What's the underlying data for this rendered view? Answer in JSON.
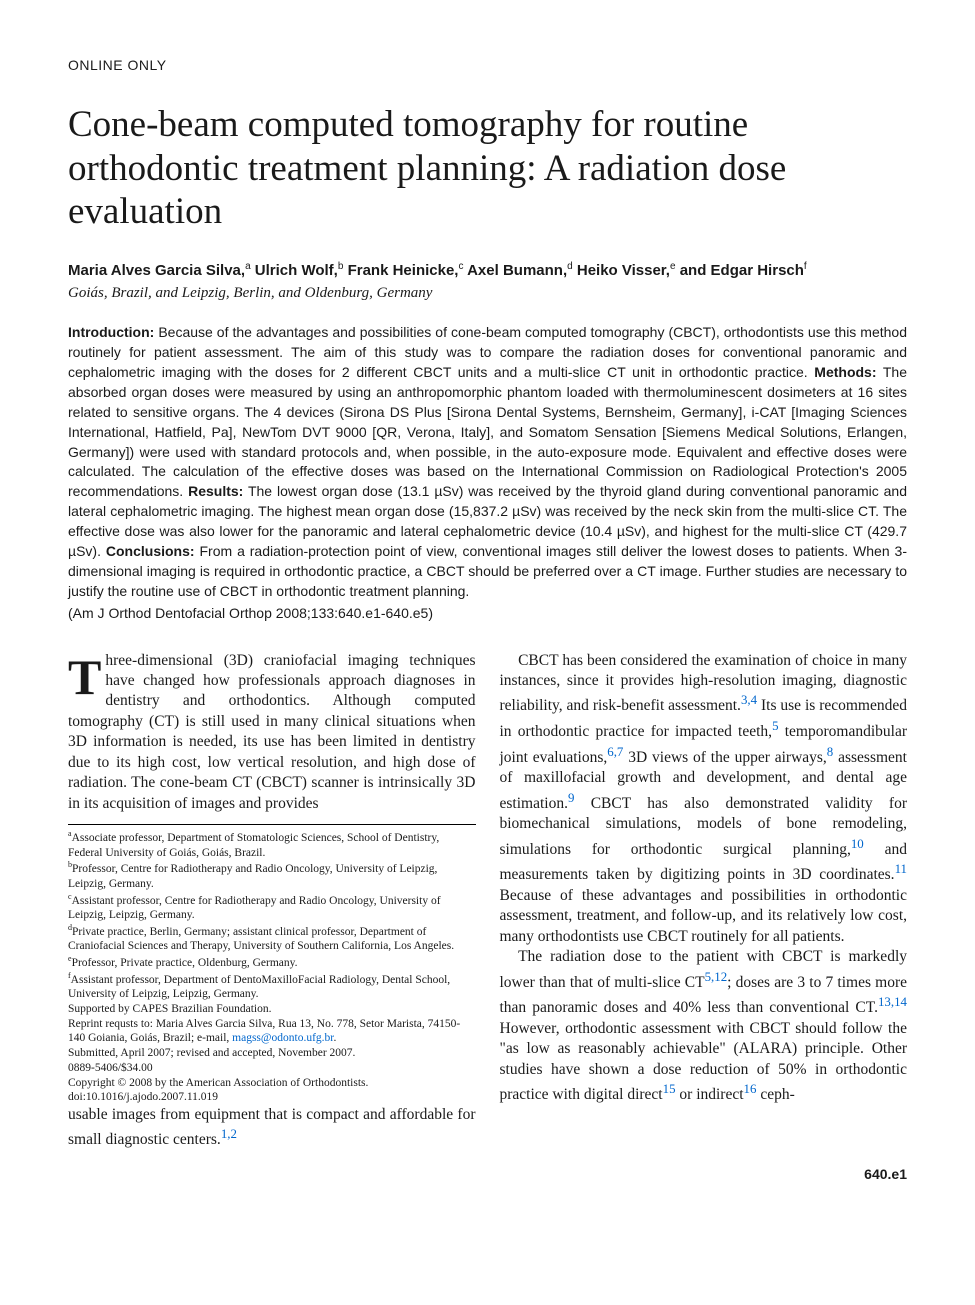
{
  "header": {
    "section_label": "ONLINE ONLY",
    "title": "Cone-beam computed tomography for routine orthodontic treatment planning: A radiation dose evaluation",
    "authors_html": "Maria Alves Garcia Silva,<sup>a</sup> Ulrich Wolf,<sup>b</sup> Frank Heinicke,<sup>c</sup> Axel Bumann,<sup>d</sup> Heiko Visser,<sup>e</sup> and Edgar Hirsch<sup>f</sup>",
    "affiliations": "Goiás, Brazil, and Leipzig, Berlin, and Oldenburg, Germany"
  },
  "abstract": {
    "intro_label": "Introduction:",
    "intro": " Because of the advantages and possibilities of cone-beam computed tomography (CBCT), orthodontists use this method routinely for patient assessment. The aim of this study was to compare the radiation doses for conventional panoramic and cephalometric imaging with the doses for 2 different CBCT units and a multi-slice CT unit in orthodontic practice. ",
    "methods_label": "Methods:",
    "methods": " The absorbed organ doses were measured by using an anthropomorphic phantom loaded with thermoluminescent dosimeters at 16 sites related to sensitive organs. The 4 devices (Sirona DS Plus [Sirona Dental Systems, Bernsheim, Germany], i-CAT [Imaging Sciences International, Hatfield, Pa], NewTom DVT 9000 [QR, Verona, Italy], and Somatom Sensation [Siemens Medical Solutions, Erlangen, Germany]) were used with standard protocols and, when possible, in the auto-exposure mode. Equivalent and effective doses were calculated. The calculation of the effective doses was based on the International Commission on Radiological Protection's 2005 recommendations. ",
    "results_label": "Results:",
    "results": " The lowest organ dose (13.1 µSv) was received by the thyroid gland during conventional panoramic and lateral cephalometric imaging. The highest mean organ dose (15,837.2 µSv) was received by the neck skin from the multi-slice CT. The effective dose was also lower for the panoramic and lateral cephalometric device (10.4 µSv), and highest for the multi-slice CT (429.7 µSv). ",
    "conclusions_label": "Conclusions:",
    "conclusions": " From a radiation-protection point of view, conventional images still deliver the lowest doses to patients. When 3-dimensional imaging is required in orthodontic practice, a CBCT should be preferred over a CT image. Further studies are necessary to justify the routine use of CBCT in orthodontic treatment planning. ",
    "citation": "(Am J Orthod Dentofacial Orthop 2008;133:640.e1-640.e5)"
  },
  "body": {
    "p1": "Three-dimensional (3D) craniofacial imaging techniques have changed how professionals approach diagnoses in dentistry and orthodontics. Although computed tomography (CT) is still used in many clinical situations when 3D information is needed, its use has been limited in dentistry due to its high cost, low vertical resolution, and high dose of radiation. The cone-beam CT (CBCT) scanner is intrinsically 3D in its acquisition of images and provides",
    "p2a": "usable images from equipment that is compact and affordable for small diagnostic centers.",
    "p2_refs": "1,2",
    "p3a": "CBCT has been considered the examination of choice in many instances, since it provides high-resolution imaging, diagnostic reliability, and risk-benefit assessment.",
    "p3_ref1": "3,4",
    "p3b": " Its use is recommended in orthodontic practice for impacted teeth,",
    "p3_ref2": "5",
    "p3c": " temporomandibular joint evaluations,",
    "p3_ref3": "6,7",
    "p3d": " 3D views of the upper airways,",
    "p3_ref4": "8",
    "p3e": " assessment of maxillofacial growth and development, and dental age estimation.",
    "p3_ref5": "9",
    "p3f": " CBCT has also demonstrated validity for biomechanical simulations, models of bone remodeling, simulations for orthodontic surgical planning,",
    "p3_ref6": "10",
    "p3g": " and measurements taken by digitizing points in 3D coordinates.",
    "p3_ref7": "11",
    "p3h": " Because of these advantages and possibilities in orthodontic assessment, treatment, and follow-up, and its relatively low cost, many orthodontists use CBCT routinely for all patients.",
    "p4a": "The radiation dose to the patient with CBCT is markedly lower than that of multi-slice CT",
    "p4_ref1": "5,12",
    "p4b": "; doses are 3 to 7 times more than panoramic doses and 40% less than conventional CT.",
    "p4_ref2": "13,14",
    "p4c": " However, orthodontic assessment with CBCT should follow the \"as low as reasonably achievable\" (ALARA) principle. Other studies have shown a dose reduction of 50% in orthodontic practice with digital direct",
    "p4_ref3": "15",
    "p4d": " or indirect",
    "p4_ref4": "16",
    "p4e": " ceph-"
  },
  "footnotes": {
    "a": "Associate professor, Department of Stomatologic Sciences, School of Dentistry, Federal University of Goiás, Goiás, Brazil.",
    "b": "Professor, Centre for Radiotherapy and Radio Oncology, University of Leipzig, Leipzig, Germany.",
    "c": "Assistant professor, Centre for Radiotherapy and Radio Oncology, University of Leipzig, Leipzig, Germany.",
    "d": "Private practice, Berlin, Germany; assistant clinical professor, Department of Craniofacial Sciences and Therapy, University of Southern California, Los Angeles.",
    "e": "Professor, Private practice, Oldenburg, Germany.",
    "f": "Assistant professor, Department of DentoMaxilloFacial Radiology, Dental School, University of Leipzig, Leipzig, Germany.",
    "support": "Supported by CAPES Brazilian Foundation.",
    "reprint1": "Reprint requsts to: Maria Alves Garcia Silva, Rua 13, No. 778, Setor Marista, 74150-140 Goiania, Goiás, Brazil; e-mail, ",
    "reprint_email": "magss@odonto.ufg.br",
    "reprint2": ".",
    "submitted": "Submitted, April 2007; revised and accepted, November 2007.",
    "issn": "0889-5406/$34.00",
    "copyright": "Copyright © 2008 by the American Association of Orthodontists.",
    "doi": "doi:10.1016/j.ajodo.2007.11.019"
  },
  "pagenum": "640.e1",
  "colors": {
    "link": "#0066cc",
    "text": "#1a1a1a",
    "background": "#ffffff"
  },
  "typography": {
    "title_fontsize": 37,
    "body_fontsize": 15.5,
    "abstract_fontsize": 14,
    "footnote_fontsize": 11.5
  }
}
